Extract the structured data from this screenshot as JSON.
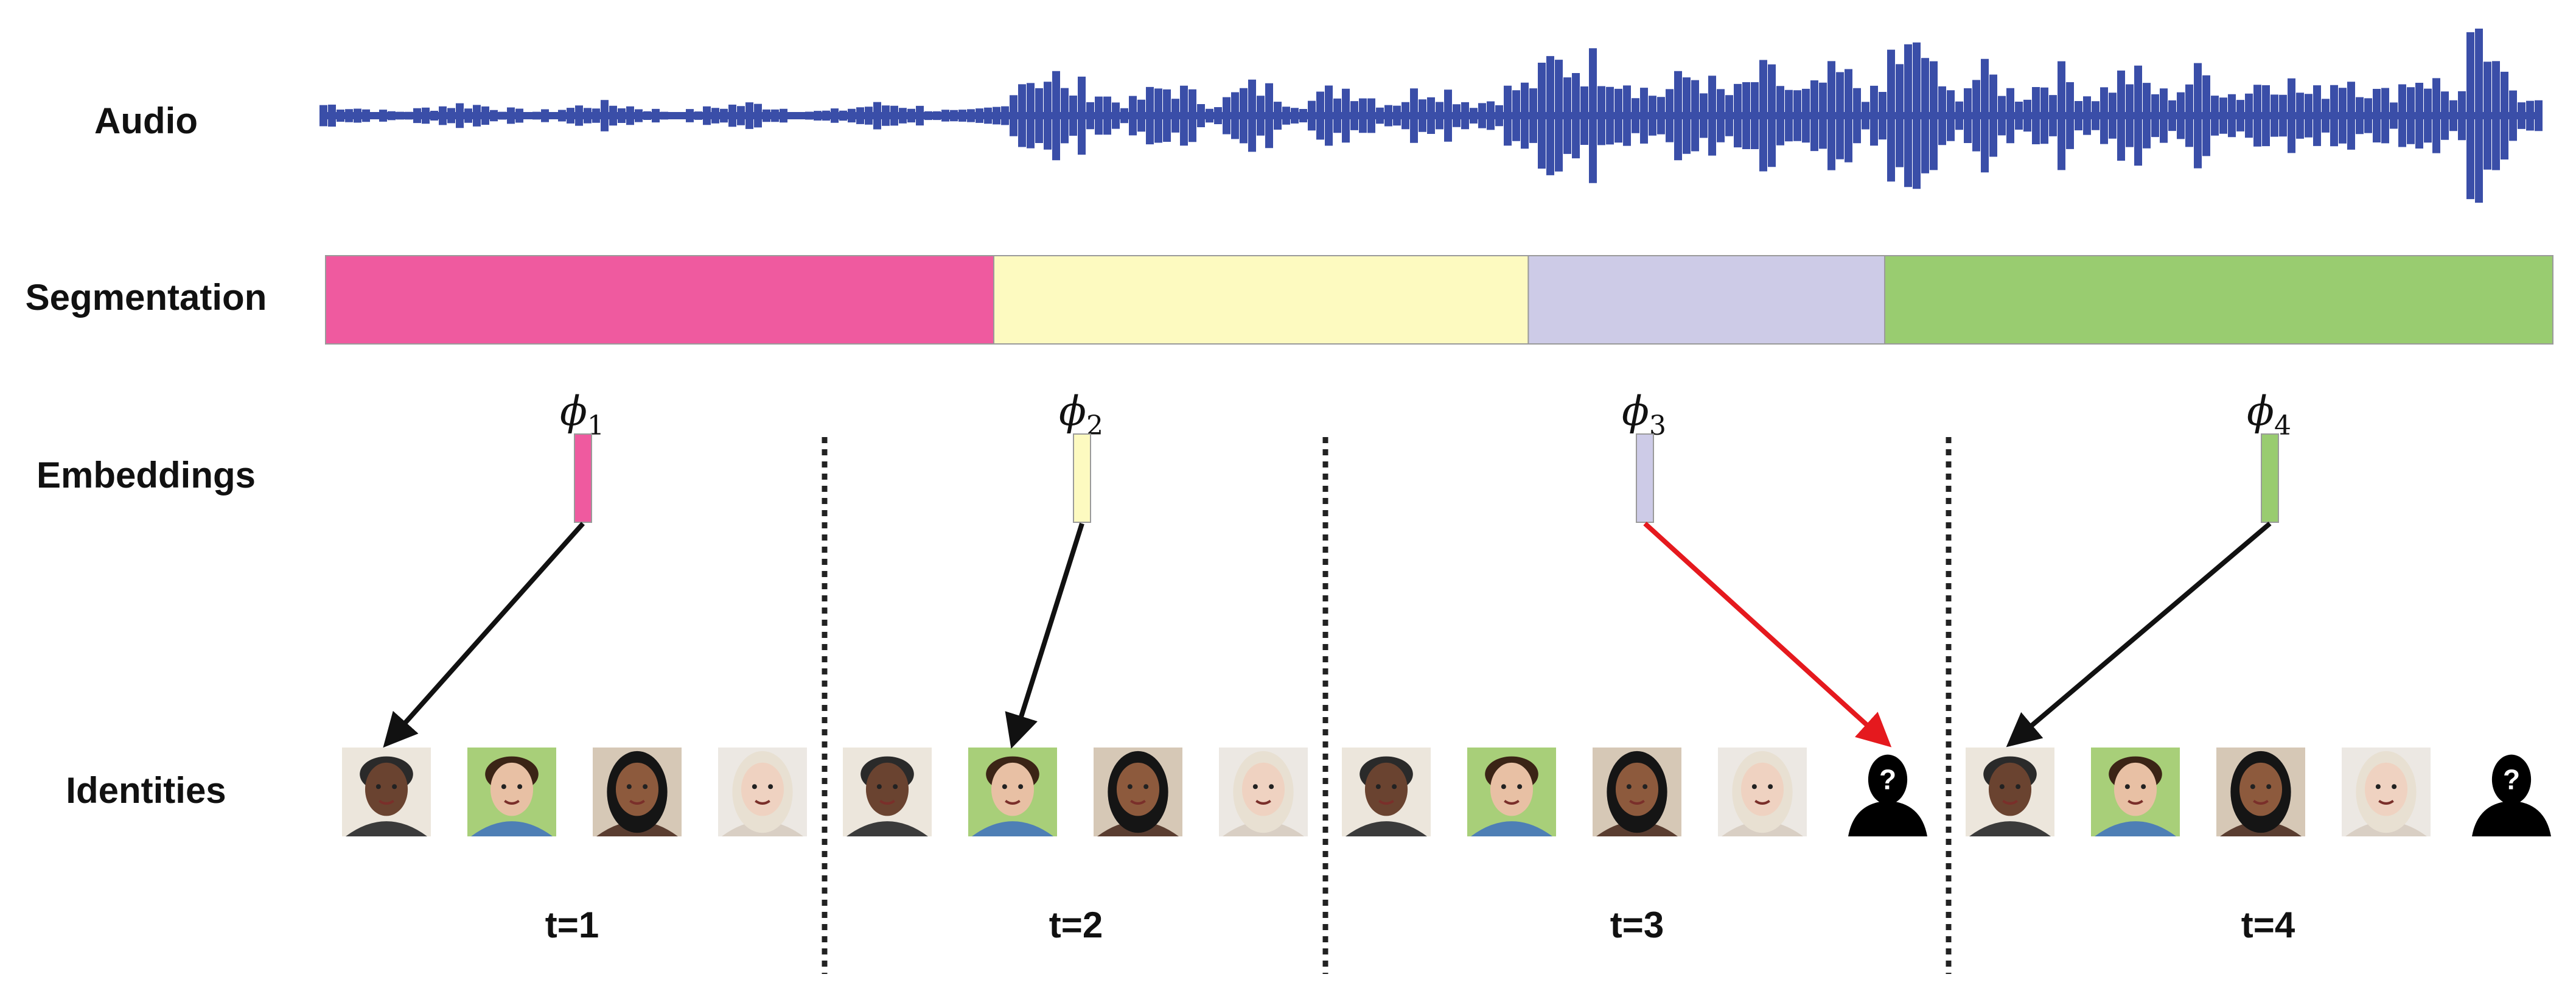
{
  "row_labels": {
    "audio": "Audio",
    "segmentation": "Segmentation",
    "embeddings": "Embeddings",
    "identities": "Identities"
  },
  "colors": {
    "waveform": "#3a4ea8",
    "segment_pink": "#ef5a9f",
    "segment_yellow": "#fdfac0",
    "segment_lavender": "#cdcbe7",
    "segment_green": "#99cc70",
    "arrow_black": "#111111",
    "arrow_red": "#e5191e",
    "separator": "#222222"
  },
  "segments": [
    {
      "id": "seg-1",
      "color": "#ef5a9f",
      "fraction": 0.3
    },
    {
      "id": "seg-2",
      "color": "#fdfac0",
      "fraction": 0.24
    },
    {
      "id": "seg-3",
      "color": "#cdcbe7",
      "fraction": 0.16
    },
    {
      "id": "seg-4",
      "color": "#99cc70",
      "fraction": 0.3
    }
  ],
  "steps": [
    {
      "time_label": "t=1",
      "embedding": {
        "symbol": "ϕ",
        "sub": "1",
        "color": "#ef5a9f"
      },
      "identities": [
        "man-older",
        "young-man",
        "woman-dark-hair",
        "woman-blonde"
      ],
      "arrow_target": 0,
      "arrow_color": "#111111"
    },
    {
      "time_label": "t=2",
      "embedding": {
        "symbol": "ϕ",
        "sub": "2",
        "color": "#fdfac0"
      },
      "identities": [
        "man-older",
        "young-man",
        "woman-dark-hair",
        "woman-blonde"
      ],
      "arrow_target": 1,
      "arrow_color": "#111111"
    },
    {
      "time_label": "t=3",
      "embedding": {
        "symbol": "ϕ",
        "sub": "3",
        "color": "#cdcbe7"
      },
      "identities": [
        "man-older",
        "young-man",
        "woman-dark-hair",
        "woman-blonde",
        "unknown"
      ],
      "arrow_target": 4,
      "arrow_color": "#e5191e"
    },
    {
      "time_label": "t=4",
      "embedding": {
        "symbol": "ϕ",
        "sub": "4",
        "color": "#99cc70"
      },
      "identities": [
        "man-older",
        "young-man",
        "woman-dark-hair",
        "woman-blonde",
        "unknown"
      ],
      "arrow_target": 0,
      "arrow_color": "#111111"
    }
  ],
  "unknown_mark": "?"
}
